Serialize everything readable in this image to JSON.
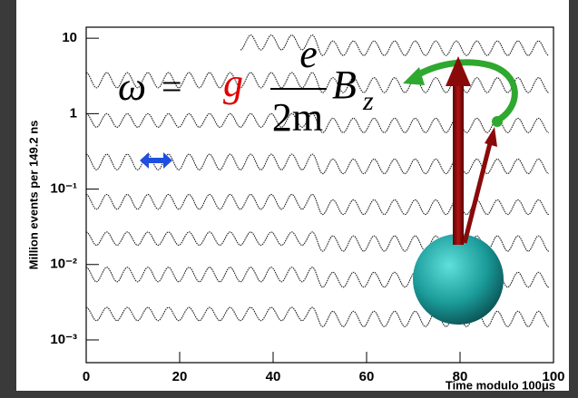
{
  "chart_data": {
    "type": "line",
    "y_label": "Million events per 149.2 ns",
    "x_label": "Time modulo 100μs",
    "log_y": true,
    "xlim": [
      0,
      100
    ],
    "xticks": [
      0,
      20,
      40,
      60,
      80,
      100
    ],
    "ylim": [
      0.0005,
      14
    ],
    "yticks": [
      10,
      1,
      {
        "value": 0.1,
        "label": "10⁻¹"
      },
      {
        "value": 0.01,
        "label": "10⁻²"
      },
      {
        "value": 0.001,
        "label": "10⁻³"
      }
    ],
    "formula": {
      "omega": "ω",
      "equals": "=",
      "g": "g",
      "numerator": "e",
      "denominator": "2m",
      "field": "B",
      "subscript": "z"
    },
    "x": [
      0,
      2.2,
      4.4,
      6.6,
      8.8,
      11,
      13.2,
      15.4,
      17.6,
      19.8,
      22,
      24.2,
      26.4,
      28.6,
      30.8,
      33,
      35.2,
      37.4,
      39.6,
      41.8,
      44,
      46.2,
      48.4,
      50.6,
      52.8,
      55,
      57.2,
      59.4,
      61.6,
      63.8,
      66,
      68.2,
      70.4,
      72.6,
      74.8,
      77,
      79.2,
      81.4,
      83.6,
      85.8,
      88,
      90.2,
      92.4,
      94.6,
      96.8,
      99
    ],
    "series": [
      {
        "color": "#222222",
        "values": [
          null,
          null,
          null,
          null,
          null,
          null,
          null,
          null,
          null,
          null,
          null,
          null,
          null,
          null,
          null,
          7,
          11,
          7,
          11,
          7,
          11,
          7,
          11,
          5.9,
          9.2,
          5.9,
          9.2,
          5.9,
          9.2,
          5.9,
          9.2,
          5.9,
          9.2,
          5.9,
          9.2,
          5.9,
          9.2,
          5.9,
          9.2,
          5.9,
          9.2,
          5.9,
          9.2,
          5.9,
          9.2,
          5.9
        ]
      },
      {
        "color": "#222222",
        "values": [
          3.5,
          2.2,
          3.5,
          2.2,
          3.5,
          2.2,
          3.5,
          2.2,
          3.5,
          2.2,
          3.5,
          2.2,
          3.5,
          2.2,
          3.5,
          2.2,
          3.5,
          2.2,
          3.5,
          2.2,
          3.5,
          2.2,
          3.5,
          1.9,
          3.0,
          1.9,
          3.0,
          1.9,
          3.0,
          1.9,
          3.0,
          1.9,
          3.0,
          1.9,
          3.0,
          1.9,
          3.0,
          1.9,
          3.0,
          1.9,
          3.0,
          1.9,
          3.0,
          1.9,
          3.0,
          1.9
        ]
      },
      {
        "color": "#222222",
        "values": [
          1.0,
          0.66,
          1.0,
          0.66,
          1.0,
          0.66,
          1.0,
          0.66,
          1.0,
          0.66,
          1.0,
          0.66,
          1.0,
          0.66,
          1.0,
          0.66,
          1.0,
          0.66,
          1.0,
          0.66,
          1.0,
          0.66,
          1.0,
          0.56,
          0.87,
          0.56,
          0.87,
          0.56,
          0.87,
          0.56,
          0.87,
          0.56,
          0.87,
          0.56,
          0.87,
          0.56,
          0.87,
          0.56,
          0.87,
          0.56,
          0.87,
          0.56,
          0.87,
          0.56,
          0.87,
          0.56
        ]
      },
      {
        "color": "#222222",
        "values": [
          0.29,
          0.18,
          0.29,
          0.18,
          0.29,
          0.18,
          0.29,
          0.18,
          0.29,
          0.18,
          0.29,
          0.18,
          0.29,
          0.18,
          0.29,
          0.18,
          0.29,
          0.18,
          0.29,
          0.18,
          0.29,
          0.18,
          0.29,
          0.16,
          0.25,
          0.16,
          0.25,
          0.16,
          0.25,
          0.16,
          0.25,
          0.16,
          0.25,
          0.16,
          0.25,
          0.16,
          0.25,
          0.16,
          0.25,
          0.16,
          0.25,
          0.16,
          0.25,
          0.16,
          0.25,
          0.16
        ]
      },
      {
        "color": "#222222",
        "values": [
          0.085,
          0.054,
          0.085,
          0.054,
          0.085,
          0.054,
          0.085,
          0.054,
          0.085,
          0.054,
          0.085,
          0.054,
          0.085,
          0.054,
          0.085,
          0.054,
          0.085,
          0.054,
          0.085,
          0.054,
          0.085,
          0.054,
          0.085,
          0.046,
          0.072,
          0.046,
          0.072,
          0.046,
          0.072,
          0.046,
          0.072,
          0.046,
          0.072,
          0.046,
          0.072,
          0.046,
          0.072,
          0.046,
          0.072,
          0.046,
          0.072,
          0.046,
          0.072,
          0.046,
          0.072,
          0.046
        ]
      },
      {
        "color": "#222222",
        "values": [
          0.027,
          0.018,
          0.027,
          0.018,
          0.027,
          0.018,
          0.027,
          0.018,
          0.027,
          0.018,
          0.027,
          0.018,
          0.027,
          0.018,
          0.027,
          0.018,
          0.027,
          0.018,
          0.027,
          0.018,
          0.027,
          0.018,
          0.027,
          0.015,
          0.024,
          0.015,
          0.024,
          0.015,
          0.024,
          0.015,
          0.024,
          0.015,
          0.024,
          0.015,
          0.024,
          0.015,
          0.024,
          0.015,
          0.024,
          0.015,
          0.024,
          0.015,
          0.024,
          0.015,
          0.024,
          0.015
        ]
      },
      {
        "color": "#222222",
        "values": [
          0.0092,
          0.0059,
          0.0092,
          0.0059,
          0.0092,
          0.0059,
          0.0092,
          0.0059,
          0.0092,
          0.0059,
          0.0092,
          0.0059,
          0.0092,
          0.0059,
          0.0092,
          0.0059,
          0.0092,
          0.0059,
          0.0092,
          0.0059,
          0.0092,
          0.0059,
          0.0092,
          0.005,
          0.0079,
          0.005,
          0.0079,
          0.005,
          0.0079,
          0.005,
          0.0079,
          0.005,
          0.0079,
          0.005,
          0.0079,
          0.005,
          0.0079,
          0.005,
          0.0079,
          0.005,
          0.0079,
          0.005,
          0.0079,
          0.005,
          0.0079,
          0.005
        ]
      },
      {
        "color": "#222222",
        "values": [
          0.0027,
          0.0018,
          0.0027,
          0.0018,
          0.0027,
          0.0018,
          0.0027,
          0.0018,
          0.0027,
          0.0018,
          0.0027,
          0.0018,
          0.0027,
          0.0018,
          0.0027,
          0.0018,
          0.0027,
          0.0018,
          0.0027,
          0.0018,
          0.0027,
          0.0018,
          0.0027,
          0.0015,
          0.0024,
          0.0015,
          0.0024,
          0.0015,
          0.0024,
          0.0015,
          0.0024,
          0.0015,
          0.0024,
          0.0015,
          0.0024,
          0.0015,
          0.0024,
          0.0015,
          0.0024,
          0.0015,
          0.0024,
          0.0015,
          0.0024,
          0.0015,
          0.0024,
          0.0015
        ]
      }
    ]
  }
}
